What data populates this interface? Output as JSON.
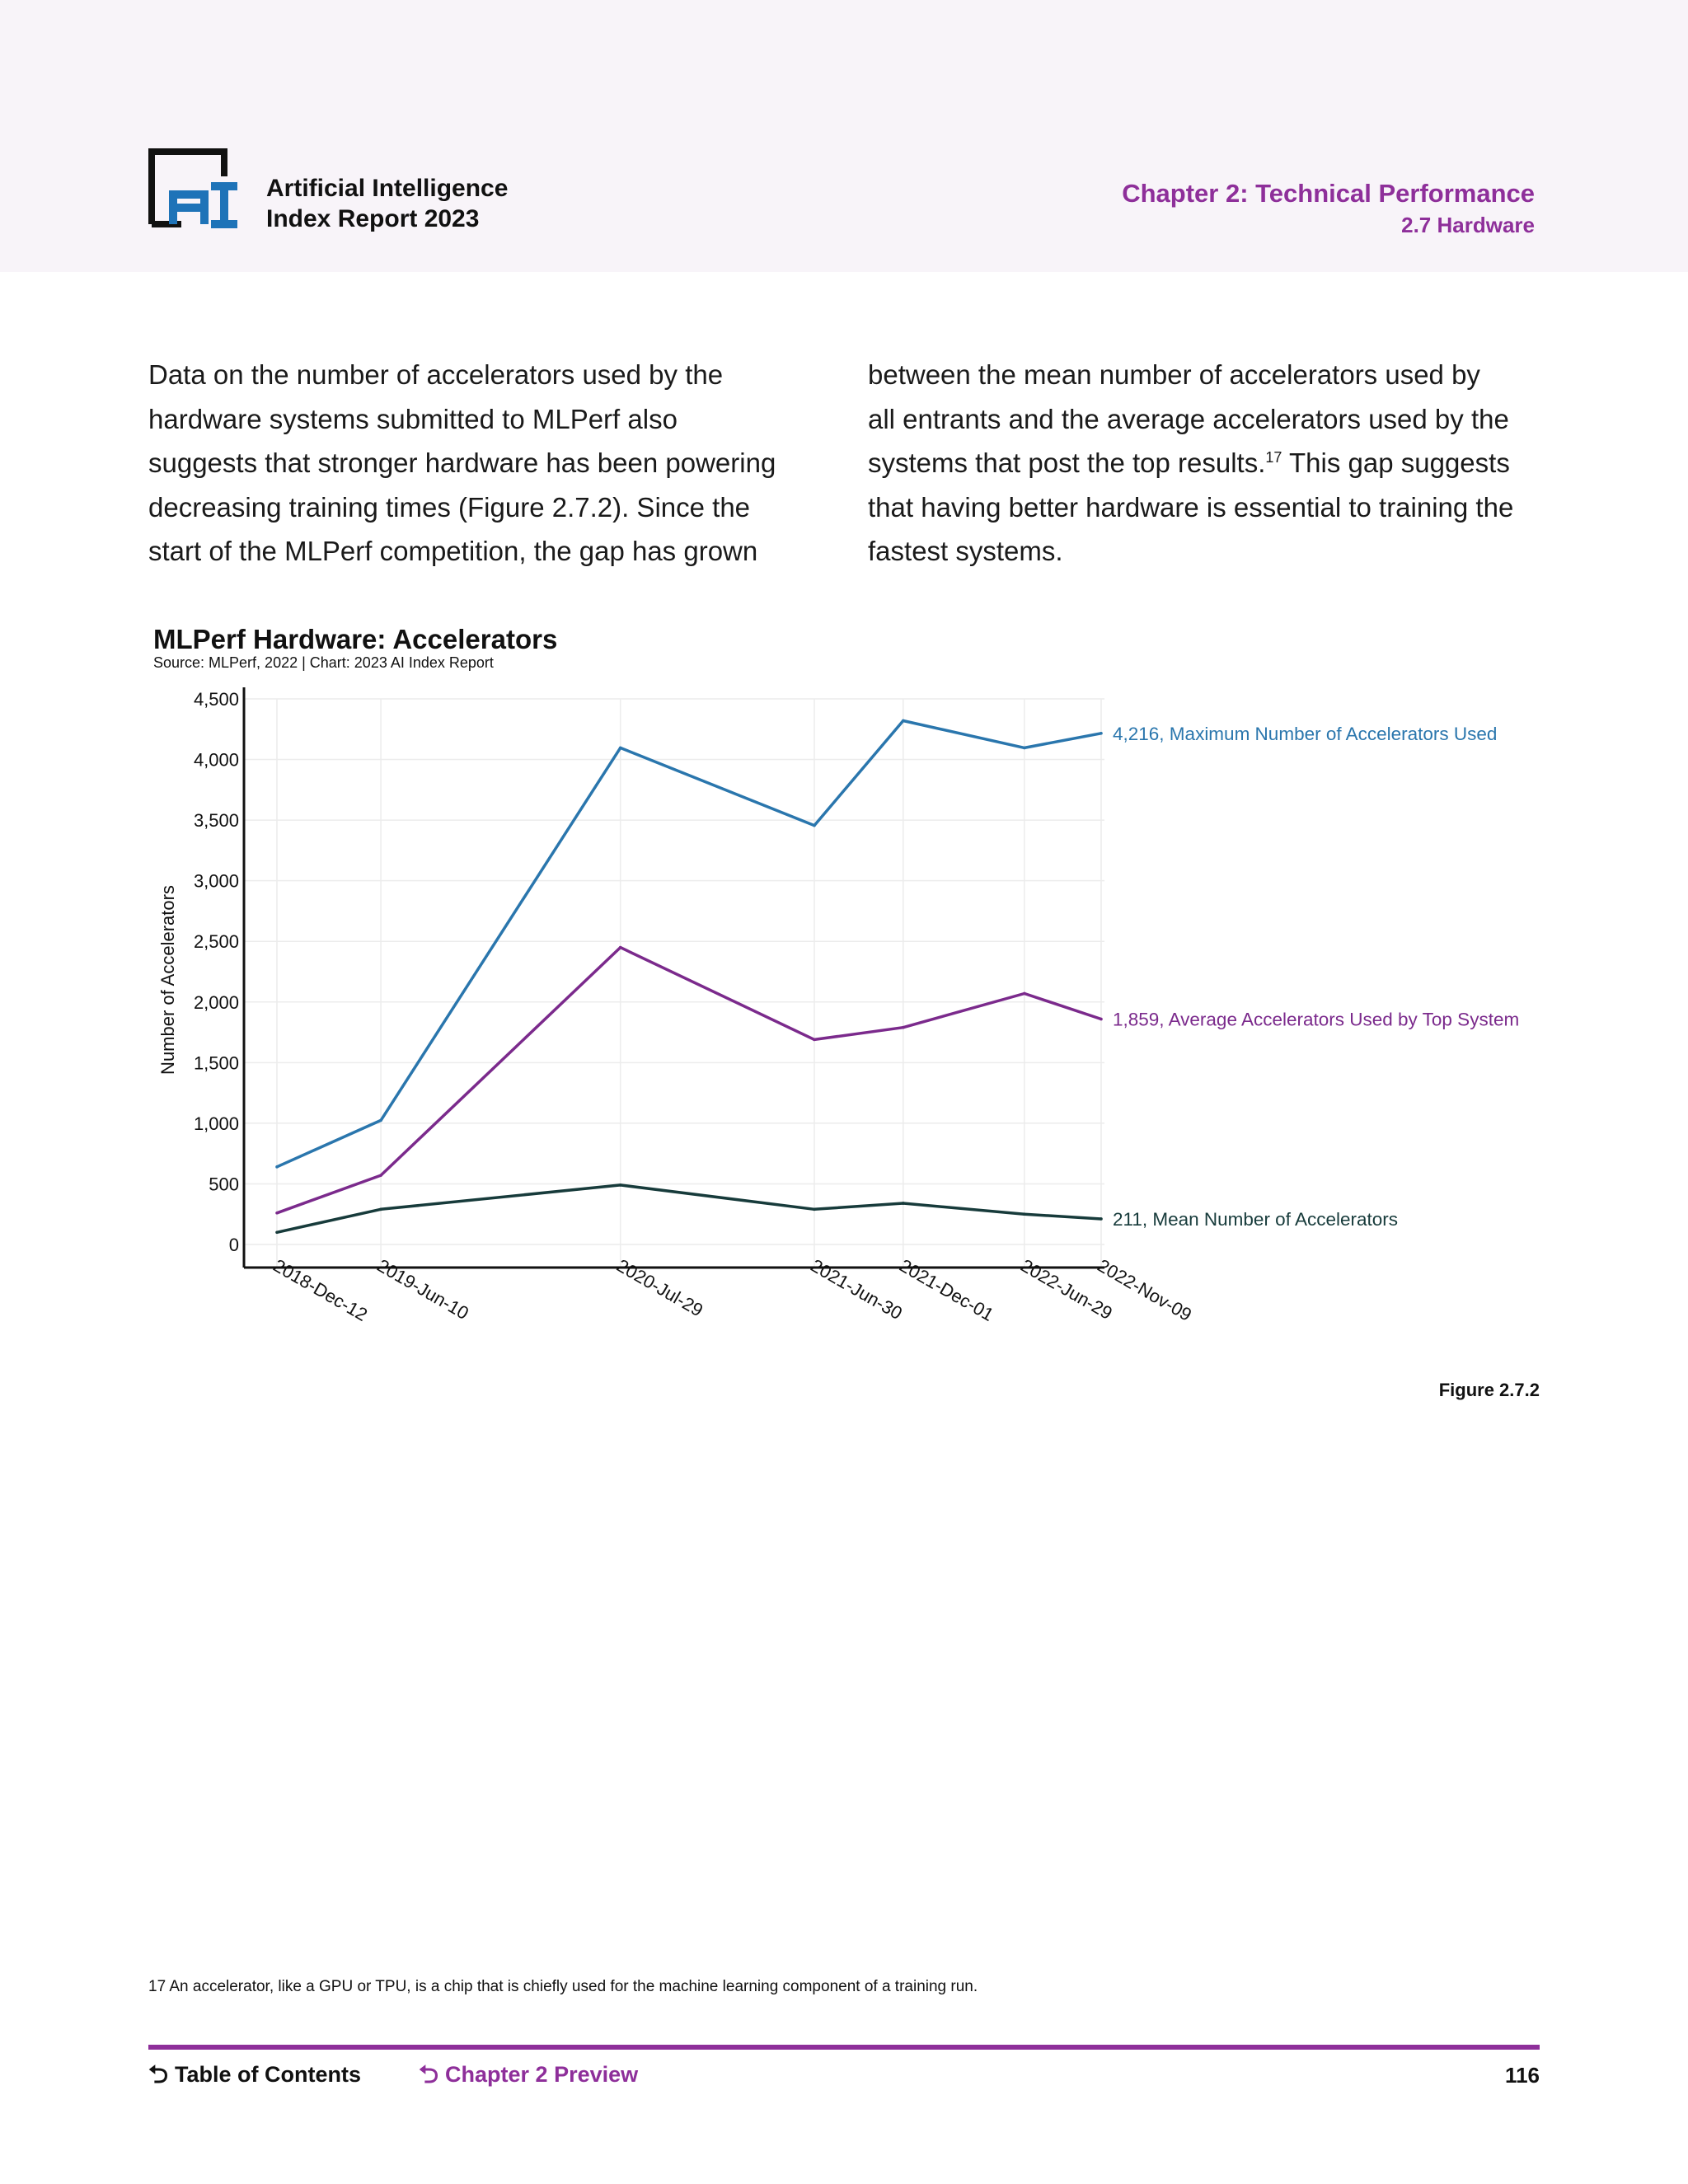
{
  "header": {
    "report_title_line1": "Artificial Intelligence",
    "report_title_line2": "Index Report 2023",
    "chapter_title": "Chapter 2: Technical Performance",
    "section_title": "2.7 Hardware",
    "logo_icon": "ai-index-logo",
    "accent_color": "#8e2f9a",
    "logo_blue": "#1e73b8"
  },
  "body": {
    "left_lines": [
      "Data on the number of accelerators used by the",
      "hardware systems submitted to MLPerf also",
      "suggests that stronger hardware has been powering",
      "decreasing training times (Figure 2.7.2). Since the",
      "start of the MLPerf competition, the gap has grown"
    ],
    "right_lines": [
      "between the mean number of accelerators used by",
      "all entrants and the average accelerators used by the",
      "systems that post the top results.",
      "that having better hardware is essential to training the",
      "fastest systems."
    ],
    "right_line3_sup": "17",
    "right_line3_tail": " This gap suggests"
  },
  "chart_data": {
    "type": "line",
    "title": "MLPerf Hardware: Accelerators",
    "subtitle": "Source: MLPerf, 2022 | Chart: 2023 AI Index Report",
    "xlabel": "",
    "ylabel": "Number of Accelerators",
    "x": [
      "2018-Dec-12",
      "2019-Jun-10",
      "2020-Jul-29",
      "2021-Jun-30",
      "2021-Dec-01",
      "2022-Jun-29",
      "2022-Nov-09"
    ],
    "x_is_date": true,
    "ylim": [
      0,
      4500
    ],
    "yticks": [
      0,
      500,
      1000,
      1500,
      2000,
      2500,
      3000,
      3500,
      4000,
      4500
    ],
    "ytick_labels": [
      "0",
      "500",
      "1,000",
      "1,500",
      "2,000",
      "2,500",
      "3,000",
      "3,500",
      "4,000",
      "4,500"
    ],
    "grid": true,
    "series": [
      {
        "name": "Maximum Number of Accelerators Used",
        "color": "#2a76ad",
        "values": [
          640,
          1024,
          4096,
          3456,
          4320,
          4096,
          4216
        ],
        "end_label": "4,216, Maximum Number of Accelerators Used"
      },
      {
        "name": "Average Accelerators Used by Top System",
        "color": "#7b2a8c",
        "values": [
          260,
          570,
          2450,
          1690,
          1790,
          2070,
          1859
        ],
        "end_label": "1,859, Average Accelerators Used by Top System"
      },
      {
        "name": "Mean Number of Accelerators",
        "color": "#173b3b",
        "values": [
          100,
          290,
          490,
          290,
          340,
          250,
          211
        ],
        "end_label": "211, Mean Number of Accelerators"
      }
    ]
  },
  "figure_label": "Figure 2.7.2",
  "footnote": "17 An accelerator, like a GPU or TPU, is a chip that is chiefly used for the machine learning component of a training run.",
  "footer": {
    "toc_label": "Table of Contents",
    "preview_label": "Chapter 2 Preview",
    "page_number": "116",
    "back_icon": "return-arrow-icon"
  }
}
